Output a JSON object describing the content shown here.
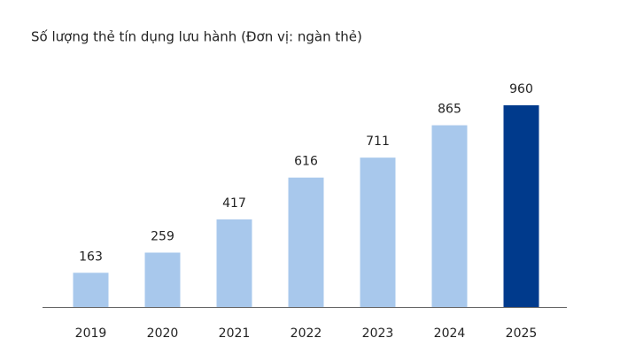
{
  "chart_data": {
    "type": "bar",
    "title": "Số lượng thẻ tín dụng lưu hành (Đơn vị: ngàn thẻ)",
    "categories": [
      "2019",
      "2020",
      "2021",
      "2022",
      "2023",
      "2024",
      "2025"
    ],
    "values": [
      163,
      259,
      417,
      616,
      711,
      865,
      960
    ],
    "colors": [
      "#a8c8ec",
      "#a8c8ec",
      "#a8c8ec",
      "#a8c8ec",
      "#a8c8ec",
      "#a8c8ec",
      "#003a8c"
    ]
  }
}
